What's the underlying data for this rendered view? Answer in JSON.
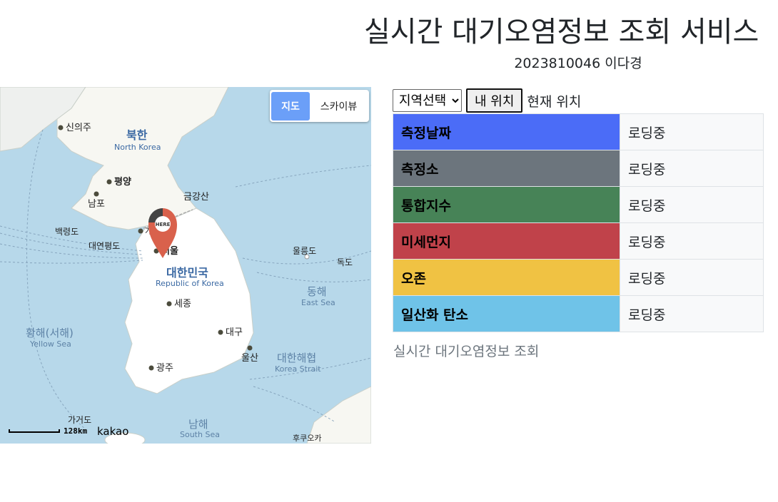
{
  "header": {
    "title": "실시간 대기오염정보 조회 서비스",
    "subtitle": "2023810046 이다경"
  },
  "map": {
    "type_control": {
      "map_label": "지도",
      "skyview_label": "스카이뷰",
      "active": "map"
    },
    "marker_label": "HERE",
    "scale_label": "128km",
    "provider": "kakao",
    "labels": {
      "sinuiju": "신의주",
      "north_korea_ko": "북한",
      "north_korea_en": "North Korea",
      "pyongyang": "평양",
      "nampo": "남포",
      "geumgangsan": "금강산",
      "baengnyeongdo": "백령도",
      "daeyeonpyeongdo": "대연평도",
      "gaeseong": "개성",
      "seoul": "서울",
      "ulleungdo": "울릉도",
      "dokdo": "독도",
      "south_korea_ko": "대한민국",
      "south_korea_en": "Republic of Korea",
      "east_sea_ko": "동해",
      "east_sea_en": "East Sea",
      "sejong": "세종",
      "yellow_sea_ko": "황해(서해)",
      "yellow_sea_en": "Yellow Sea",
      "daegu": "대구",
      "ulsan": "울산",
      "korea_strait_ko": "대한해협",
      "korea_strait_en": "Korea Strait",
      "gwangju": "광주",
      "gageodo": "가거도",
      "south_sea_ko": "남해",
      "south_sea_en": "South Sea",
      "fukuoka": "후쿠오카"
    }
  },
  "controls": {
    "region_select": {
      "selected": "지역선택"
    },
    "my_location_button": "내 위치",
    "current_location_label": "현재 위치"
  },
  "info_table": [
    {
      "label": "측정날짜",
      "value": "로딩중",
      "color": "#4b6cf7",
      "text_color": "#000000"
    },
    {
      "label": "측정소",
      "value": "로딩중",
      "color": "#6c757d",
      "text_color": "#000000"
    },
    {
      "label": "통합지수",
      "value": "로딩중",
      "color": "#478357",
      "text_color": "#000000"
    },
    {
      "label": "미세먼지",
      "value": "로딩중",
      "color": "#c0424a",
      "text_color": "#000000"
    },
    {
      "label": "오존",
      "value": "로딩중",
      "color": "#f0c243",
      "text_color": "#000000"
    },
    {
      "label": "일산화 탄소",
      "value": "로딩중",
      "color": "#6fc3e8",
      "text_color": "#000000"
    }
  ],
  "caption": "실시간 대기오염정보 조회"
}
